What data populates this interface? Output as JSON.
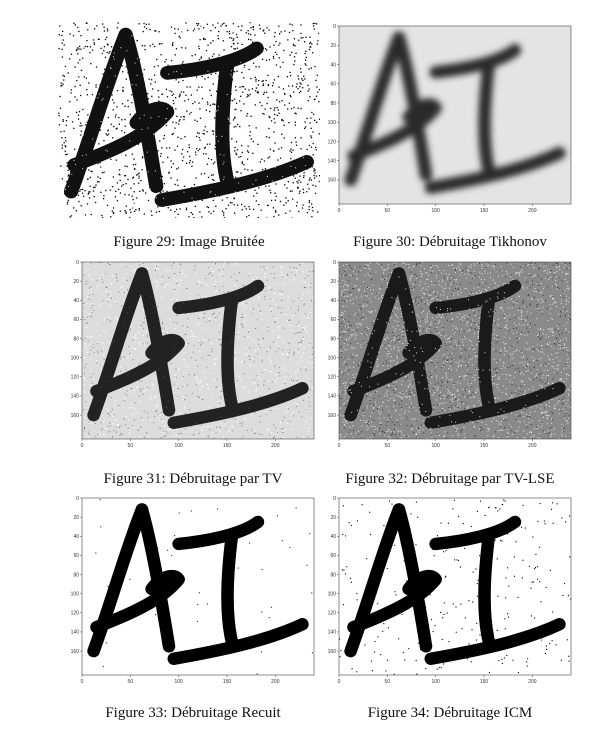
{
  "figures": [
    {
      "caption": "Figure 29: Image Bruitée",
      "style": "noisy",
      "axes": false
    },
    {
      "caption": "Figure 30: Débruitage Tikhonov",
      "style": "blur",
      "axes": true,
      "yticks": [
        "0",
        "20",
        "40",
        "60",
        "80",
        "100",
        "120",
        "140",
        "160"
      ],
      "xticks": [
        "0",
        "50",
        "100",
        "150",
        "200"
      ]
    },
    {
      "caption": "Figure 31: Débruitage par TV",
      "style": "tv",
      "axes": true,
      "yticks": [
        "0",
        "20",
        "40",
        "60",
        "80",
        "100",
        "120",
        "140",
        "160"
      ],
      "xticks": [
        "0",
        "50",
        "100",
        "150",
        "200"
      ]
    },
    {
      "caption": "Figure 32: Débruitage par TV-LSE",
      "style": "tvlse",
      "axes": true,
      "yticks": [
        "0",
        "20",
        "40",
        "60",
        "80",
        "100",
        "120",
        "140",
        "160"
      ],
      "xticks": [
        "0",
        "50",
        "100",
        "150",
        "200"
      ]
    },
    {
      "caption": "Figure 33: Débruitage Recuit",
      "style": "recuit",
      "axes": true,
      "yticks": [
        "0",
        "20",
        "40",
        "60",
        "80",
        "100",
        "120",
        "140",
        "160"
      ],
      "xticks": [
        "0",
        "50",
        "100",
        "150",
        "200"
      ]
    },
    {
      "caption": "Figure 34: Débruitage ICM",
      "style": "icm",
      "axes": true,
      "yticks": [
        "0",
        "20",
        "40",
        "60",
        "80",
        "100",
        "120",
        "140",
        "160"
      ],
      "xticks": [
        "0",
        "50",
        "100",
        "150",
        "200"
      ]
    }
  ]
}
